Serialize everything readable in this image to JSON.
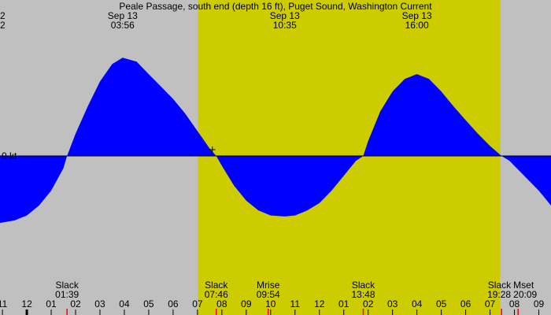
{
  "chart_data": {
    "type": "area",
    "title": "Peale Passage, south end (depth 16 ft), Puget Sound, Washington Current",
    "zero_label": "0 kt",
    "left_edge_labels": [
      "2",
      "2"
    ],
    "x_range_hours": [
      -1.1,
      21.5
    ],
    "y_range_kt": [
      -1.6,
      2.0
    ],
    "daylight": {
      "start": "07:01",
      "end": "19:25"
    },
    "colors": {
      "night": "#c0c0c0",
      "day": "#cccc00",
      "flood": "#0000ff",
      "ebb": "#2e8b57",
      "outline": "#000000",
      "marker": "#ff0000"
    },
    "events_top": [
      {
        "date": "Sep 13",
        "time": "03:56",
        "hour": 3.93
      },
      {
        "date": "Sep 13",
        "time": "10:35",
        "hour": 10.58
      },
      {
        "date": "Sep 13",
        "time": "16:00",
        "hour": 16.0
      }
    ],
    "events_bottom": [
      {
        "label": "Slack",
        "time": "01:39",
        "hour": 1.65
      },
      {
        "label": "Slack",
        "time": "07:46",
        "hour": 7.77
      },
      {
        "label": "Mrise",
        "time": "09:54",
        "hour": 9.9
      },
      {
        "label": "Slack",
        "time": "13:48",
        "hour": 13.8
      },
      {
        "label": "Slack",
        "time": "19:28",
        "hour": 19.47
      },
      {
        "label": "Mset",
        "time": "20:09",
        "hour": 20.15
      }
    ],
    "hour_ticks": [
      {
        "label": "11",
        "hour": -1
      },
      {
        "label": "12",
        "hour": 0
      },
      {
        "label": "01",
        "hour": 1
      },
      {
        "label": "02",
        "hour": 2
      },
      {
        "label": "03",
        "hour": 3
      },
      {
        "label": "04",
        "hour": 4
      },
      {
        "label": "05",
        "hour": 5
      },
      {
        "label": "06",
        "hour": 6
      },
      {
        "label": "07",
        "hour": 7
      },
      {
        "label": "08",
        "hour": 8
      },
      {
        "label": "09",
        "hour": 9
      },
      {
        "label": "10",
        "hour": 10
      },
      {
        "label": "11",
        "hour": 11
      },
      {
        "label": "12",
        "hour": 12
      },
      {
        "label": "01",
        "hour": 13
      },
      {
        "label": "02",
        "hour": 14
      },
      {
        "label": "03",
        "hour": 15
      },
      {
        "label": "04",
        "hour": 16
      },
      {
        "label": "05",
        "hour": 17
      },
      {
        "label": "06",
        "hour": 18
      },
      {
        "label": "07",
        "hour": 19
      },
      {
        "label": "08",
        "hour": 20
      },
      {
        "label": "09",
        "hour": 21
      }
    ],
    "series": [
      {
        "x": [
          -1.1,
          -0.5,
          0.0,
          0.5,
          1.0,
          1.5,
          1.65,
          2.0,
          2.5,
          3.0,
          3.5,
          3.93,
          4.5,
          5.0,
          5.5,
          6.0,
          6.5,
          7.0,
          7.5,
          7.77,
          8.0,
          8.5,
          9.0,
          9.5,
          10.0,
          10.58,
          11.0,
          11.5,
          12.0,
          12.5,
          13.0,
          13.5,
          13.8,
          14.0,
          14.5,
          15.0,
          15.5,
          16.0,
          16.5,
          17.0,
          17.5,
          18.0,
          18.5,
          19.0,
          19.47,
          19.8,
          20.2,
          20.6,
          21.0,
          21.5
        ],
        "y": [
          -1.35,
          -1.3,
          -1.2,
          -1.0,
          -0.7,
          -0.25,
          0.0,
          0.45,
          1.0,
          1.5,
          1.85,
          1.98,
          1.9,
          1.65,
          1.4,
          1.15,
          0.85,
          0.5,
          0.15,
          0.0,
          -0.2,
          -0.6,
          -0.9,
          -1.1,
          -1.2,
          -1.22,
          -1.2,
          -1.1,
          -0.95,
          -0.7,
          -0.4,
          -0.1,
          0.0,
          0.3,
          0.9,
          1.3,
          1.55,
          1.65,
          1.55,
          1.3,
          1.0,
          0.72,
          0.45,
          0.2,
          0.0,
          -0.1,
          -0.3,
          -0.5,
          -0.7,
          -1.0
        ]
      }
    ]
  }
}
